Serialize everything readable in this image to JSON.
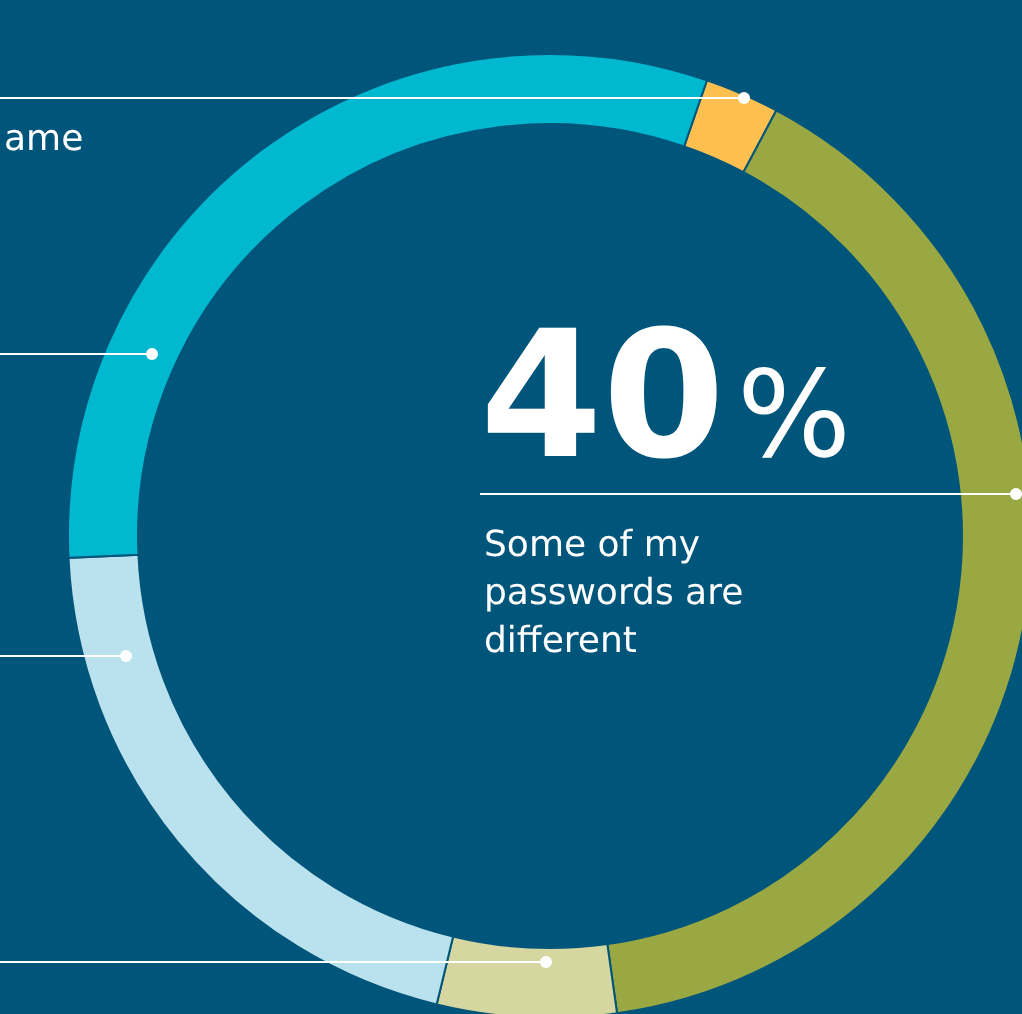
{
  "chart_data": {
    "type": "donut",
    "categories": [
      null,
      "Some of my passwords are different",
      null,
      null,
      null
    ],
    "values": [
      2.5,
      40,
      6,
      20.5,
      31
    ],
    "colors": [
      "#fdbf4f",
      "#9aa843",
      "#d5d6a0",
      "#b9e1ee",
      "#00b9d0"
    ],
    "value_labels": [
      null,
      "40%",
      null,
      null,
      null
    ],
    "annotations": [
      "ame"
    ]
  }
}
